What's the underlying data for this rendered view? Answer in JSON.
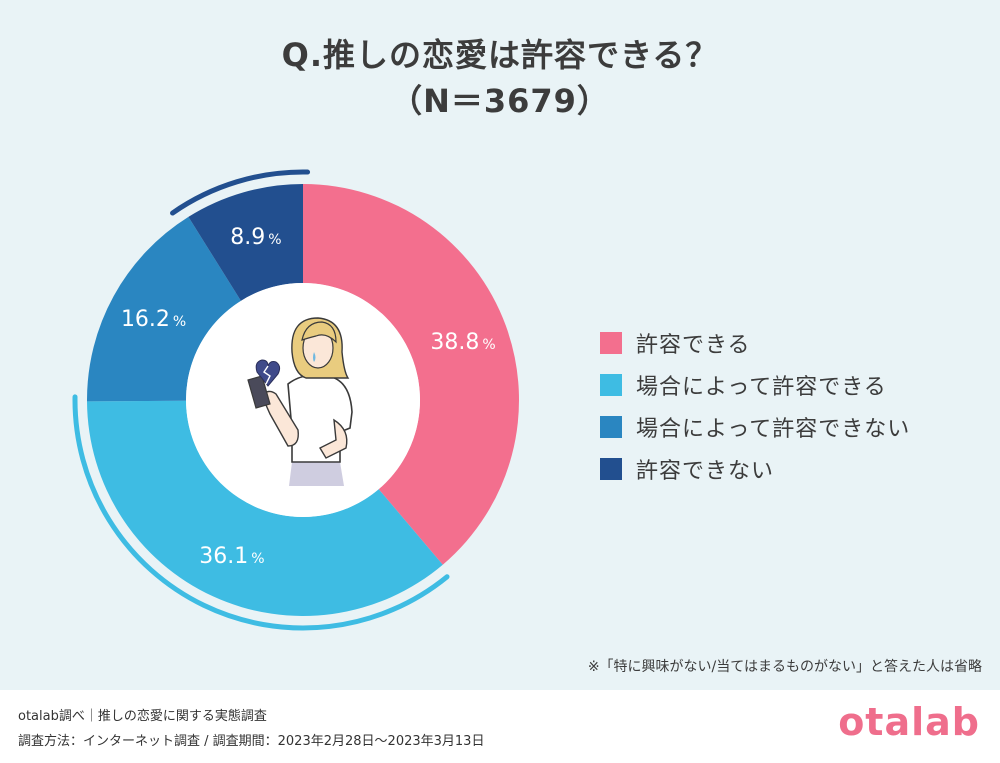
{
  "title_line1": "Q.推しの恋愛は許容できる？",
  "title_line2": "（N＝3679）",
  "chart_data": {
    "type": "pie",
    "title": "Q.推しの恋愛は許容できる？（N＝3679）",
    "unit": "%",
    "categories": [
      "許容できる",
      "場合によって許容できる",
      "場合によって許容できない",
      "許容できない"
    ],
    "values": [
      38.8,
      36.1,
      16.2,
      8.9
    ],
    "value_labels": [
      "38.8",
      "36.1",
      "16.2",
      "8.9"
    ],
    "colors": [
      "#f36f8e",
      "#3ebce3",
      "#2a86c1",
      "#224f8f"
    ],
    "legend_position": "right",
    "donut": true
  },
  "note": "※「特に興味がない/当てはまるものがない」と答えた人は省略",
  "footer": {
    "line1": "otalab調べ｜推しの恋愛に関する実態調査",
    "line2": "調査方法：インターネット調査 / 調査期間：2023年2月28日〜2023年3月13日"
  },
  "brand": "otalab",
  "icons": [
    "woman-illustration-icon",
    "broken-heart-icon"
  ]
}
